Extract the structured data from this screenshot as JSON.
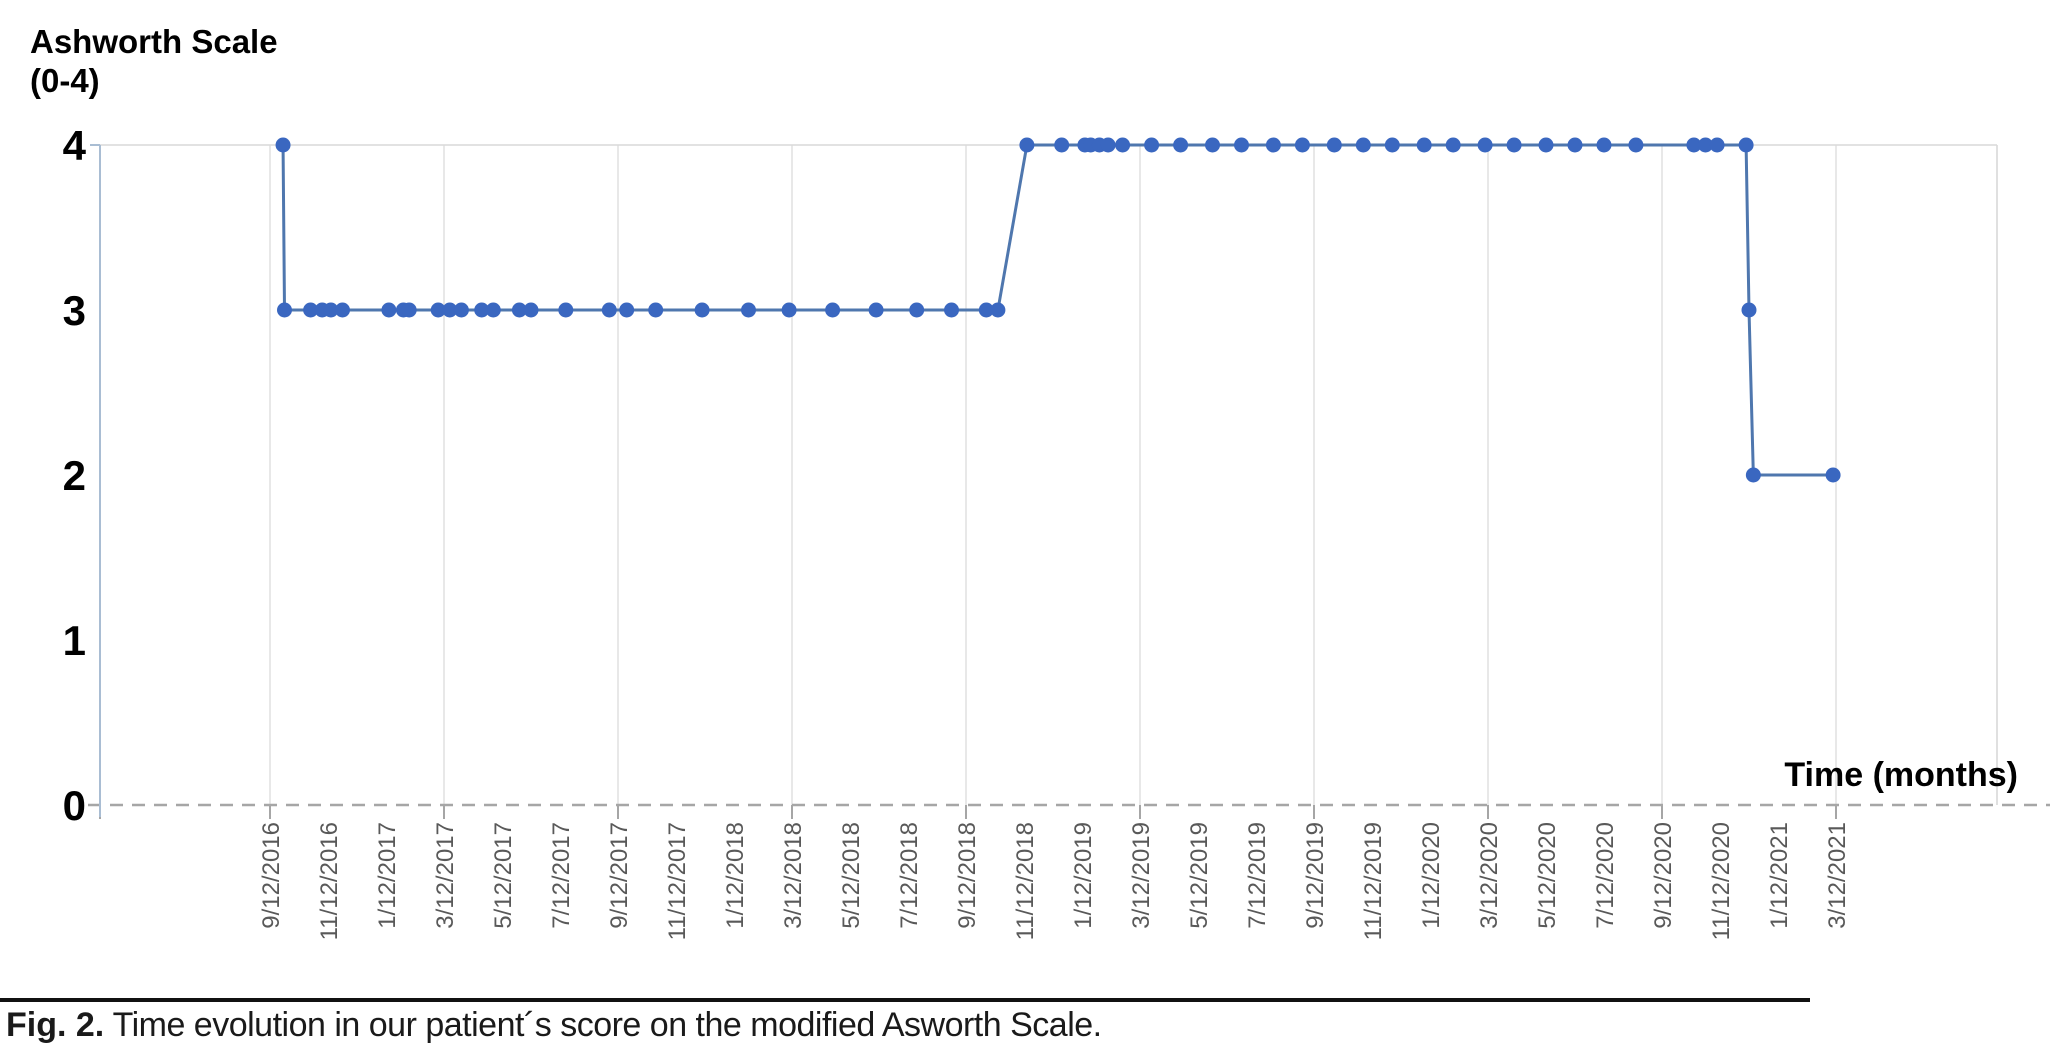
{
  "texts": {
    "y_axis_title_line1": "Ashworth Scale",
    "y_axis_title_line2": "(0-4)",
    "x_axis_title": "Time (months)"
  },
  "caption": {
    "label": "Fig. 2.",
    "text": " Time evolution in our patient´s score on the modified Asworth Scale."
  },
  "colors": {
    "marker": "#3a67c0",
    "line": "#4f77ae",
    "gridline": "#e3e3e3",
    "plot_border": "#d9d9d9",
    "y_axis_line": "#a9bdd3",
    "zero_dashed_line": "#a6a6a6",
    "x_tick_text": "#595959",
    "y_tick_text": "#000000"
  },
  "chart_data": {
    "type": "line",
    "title": "",
    "ylabel": "Ashworth Scale (0-4)",
    "xlabel": "Time (months)",
    "ylim": [
      0,
      4
    ],
    "y_ticks": [
      4,
      3,
      2,
      1,
      0
    ],
    "x_tick_labels": [
      "9/12/2016",
      "11/12/2016",
      "1/12/2017",
      "3/12/2017",
      "5/12/2017",
      "7/12/2017",
      "9/12/2017",
      "11/12/2017",
      "1/12/2018",
      "3/12/2018",
      "5/12/2018",
      "7/12/2018",
      "9/12/2018",
      "11/12/2018",
      "1/12/2019",
      "3/12/2019",
      "5/12/2019",
      "7/12/2019",
      "9/12/2019",
      "11/12/2019",
      "1/12/2020",
      "3/12/2020",
      "5/12/2020",
      "7/12/2020",
      "9/12/2020",
      "11/12/2020",
      "1/12/2021",
      "3/12/2021"
    ],
    "x_label_month_step": 2,
    "gridline_every_n_labels": 3,
    "grid": "vertical-only",
    "legend_position": "none",
    "x_unit": "months since 9/12/2016",
    "series": [
      {
        "name": "Modified Ashworth Scale score",
        "marker": "circle",
        "points": [
          [
            0.45,
            4
          ],
          [
            0.5,
            3
          ],
          [
            1.4,
            3
          ],
          [
            1.8,
            3
          ],
          [
            2.1,
            3
          ],
          [
            2.5,
            3
          ],
          [
            4.1,
            3
          ],
          [
            4.6,
            3
          ],
          [
            4.8,
            3
          ],
          [
            5.8,
            3
          ],
          [
            6.2,
            3
          ],
          [
            6.6,
            3
          ],
          [
            7.3,
            3
          ],
          [
            7.7,
            3
          ],
          [
            8.6,
            3
          ],
          [
            9,
            3
          ],
          [
            10.2,
            3
          ],
          [
            11.7,
            3
          ],
          [
            12.3,
            3
          ],
          [
            13.3,
            3
          ],
          [
            14.9,
            3
          ],
          [
            16.5,
            3
          ],
          [
            17.9,
            3
          ],
          [
            19.4,
            3
          ],
          [
            20.9,
            3
          ],
          [
            22.3,
            3
          ],
          [
            23.5,
            3
          ],
          [
            24.7,
            3
          ],
          [
            25.1,
            3
          ],
          [
            26.1,
            4
          ],
          [
            27.3,
            4
          ],
          [
            28.1,
            4
          ],
          [
            28.3,
            4
          ],
          [
            28.6,
            4
          ],
          [
            28.9,
            4
          ],
          [
            29.4,
            4
          ],
          [
            30.4,
            4
          ],
          [
            31.4,
            4
          ],
          [
            32.5,
            4
          ],
          [
            33.5,
            4
          ],
          [
            34.6,
            4
          ],
          [
            35.6,
            4
          ],
          [
            36.7,
            4
          ],
          [
            37.7,
            4
          ],
          [
            38.7,
            4
          ],
          [
            39.8,
            4
          ],
          [
            40.8,
            4
          ],
          [
            41.9,
            4
          ],
          [
            42.9,
            4
          ],
          [
            44,
            4
          ],
          [
            45,
            4
          ],
          [
            46,
            4
          ],
          [
            47.1,
            4
          ],
          [
            49.1,
            4
          ],
          [
            49.5,
            4
          ],
          [
            49.9,
            4
          ],
          [
            50.9,
            4
          ],
          [
            51,
            3
          ],
          [
            51.15,
            2
          ],
          [
            53.9,
            2
          ]
        ]
      }
    ]
  }
}
